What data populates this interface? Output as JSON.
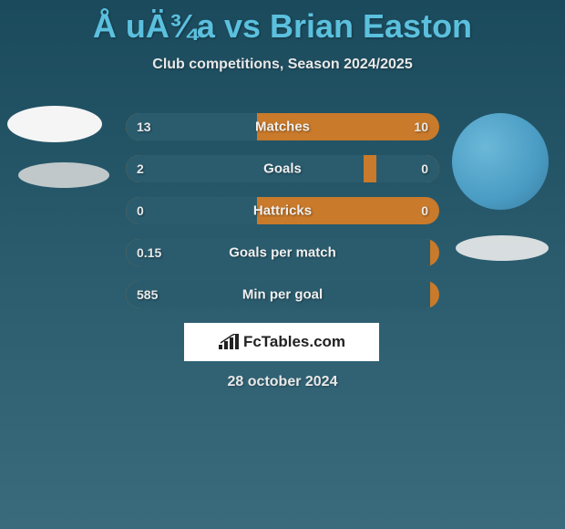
{
  "header": {
    "title": "Å uÄ¾a vs Brian Easton",
    "subtitle": "Club competitions, Season 2024/2025"
  },
  "colors": {
    "title_color": "#5bc0de",
    "text_color": "#e8e8e8",
    "bar_bg": "#c97a2a",
    "bar_fill": "#2a5c6e",
    "avatar_left_bg": "#f5f5f5",
    "avatar_right_bg": "#4a9cc4",
    "branding_bg": "#ffffff",
    "branding_text": "#222222"
  },
  "stats": [
    {
      "label": "Matches",
      "left_value": "13",
      "right_value": "10",
      "left_fill_pct": 42,
      "right_fill_pct": 0
    },
    {
      "label": "Goals",
      "left_value": "2",
      "right_value": "0",
      "left_fill_pct": 76,
      "right_fill_pct": 20
    },
    {
      "label": "Hattricks",
      "left_value": "0",
      "right_value": "0",
      "left_fill_pct": 42,
      "right_fill_pct": 0
    },
    {
      "label": "Goals per match",
      "left_value": "0.15",
      "right_value": "",
      "left_fill_pct": 97,
      "right_fill_pct": 0
    },
    {
      "label": "Min per goal",
      "left_value": "585",
      "right_value": "",
      "left_fill_pct": 97,
      "right_fill_pct": 0
    }
  ],
  "branding": {
    "text": "FcTables.com"
  },
  "footer": {
    "date": "28 october 2024"
  }
}
